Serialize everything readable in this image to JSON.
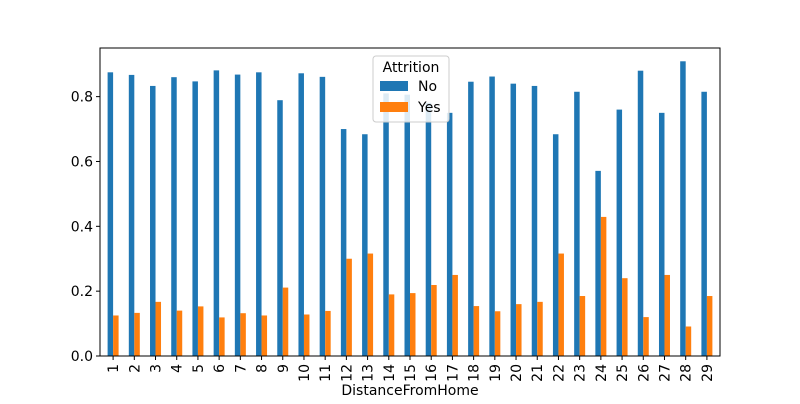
{
  "chart_data": {
    "type": "bar",
    "xlabel": "DistanceFromHome",
    "ylabel": "",
    "ylim": [
      0,
      0.95
    ],
    "yticks": [
      "0.0",
      "0.2",
      "0.4",
      "0.6",
      "0.8"
    ],
    "categories": [
      "1",
      "2",
      "3",
      "4",
      "5",
      "6",
      "7",
      "8",
      "9",
      "10",
      "11",
      "12",
      "13",
      "14",
      "15",
      "16",
      "17",
      "18",
      "19",
      "20",
      "21",
      "22",
      "23",
      "24",
      "25",
      "26",
      "27",
      "28",
      "29"
    ],
    "legend": {
      "title": "Attrition",
      "placement": "top-center"
    },
    "series": [
      {
        "name": "No",
        "color": "#1f77b4",
        "values": [
          0.875,
          0.867,
          0.833,
          0.86,
          0.847,
          0.881,
          0.868,
          0.875,
          0.789,
          0.872,
          0.861,
          0.7,
          0.684,
          0.81,
          0.806,
          0.781,
          0.75,
          0.846,
          0.862,
          0.84,
          0.833,
          0.684,
          0.815,
          0.571,
          0.76,
          0.88,
          0.75,
          0.909,
          0.815
        ]
      },
      {
        "name": "Yes",
        "color": "#ff7f0e",
        "values": [
          0.125,
          0.133,
          0.167,
          0.14,
          0.153,
          0.119,
          0.132,
          0.125,
          0.211,
          0.128,
          0.139,
          0.3,
          0.316,
          0.19,
          0.194,
          0.219,
          0.25,
          0.154,
          0.138,
          0.16,
          0.167,
          0.316,
          0.185,
          0.429,
          0.24,
          0.12,
          0.25,
          0.091,
          0.185
        ]
      }
    ]
  }
}
